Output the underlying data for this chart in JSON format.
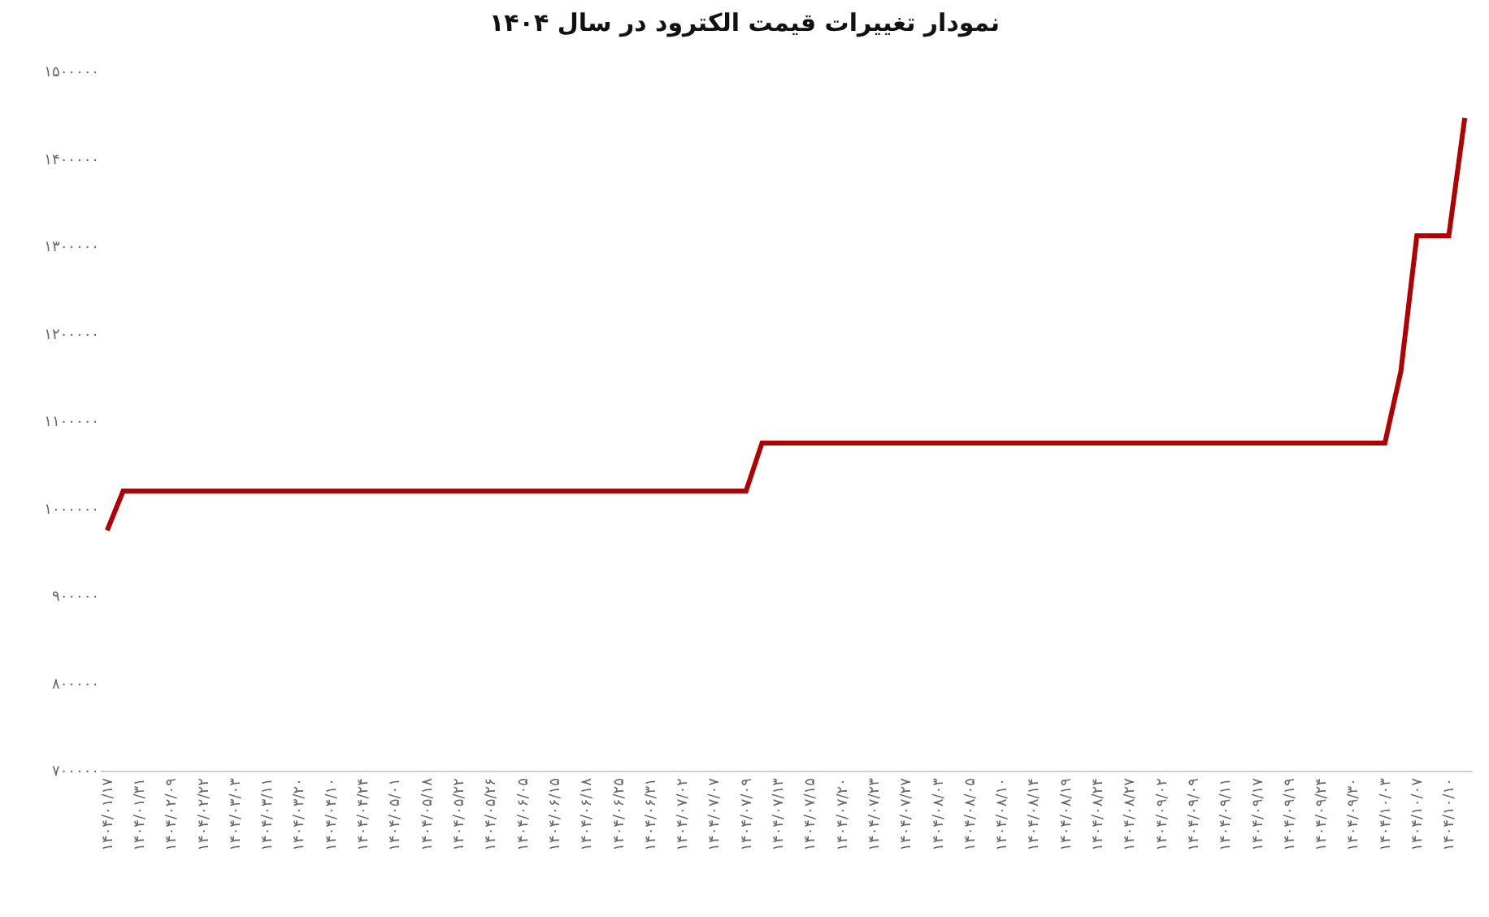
{
  "chart_data": {
    "type": "line",
    "title": "نمودار تغییرات قیمت الکترود در سال ۱۴۰۴",
    "categories": [
      "۱۴۰۴/۰۱/۱۷",
      null,
      "۱۴۰۴/۰۱/۳۱",
      null,
      "۱۴۰۴/۰۲/۰۹",
      null,
      "۱۴۰۴/۰۲/۲۲",
      null,
      "۱۴۰۴/۰۳/۰۳",
      null,
      "۱۴۰۴/۰۳/۱۱",
      null,
      "۱۴۰۴/۰۳/۲۰",
      null,
      "۱۴۰۴/۰۴/۱۰",
      null,
      "۱۴۰۴/۰۴/۲۴",
      null,
      "۱۴۰۴/۰۵/۰۱",
      null,
      "۱۴۰۴/۰۵/۱۸",
      null,
      "۱۴۰۴/۰۵/۲۲",
      null,
      "۱۴۰۴/۰۵/۲۶",
      null,
      "۱۴۰۴/۰۶/۰۵",
      null,
      "۱۴۰۴/۰۶/۱۵",
      null,
      "۱۴۰۴/۰۶/۱۸",
      null,
      "۱۴۰۴/۰۶/۲۵",
      null,
      "۱۴۰۴/۰۶/۳۱",
      null,
      "۱۴۰۴/۰۷/۰۲",
      null,
      "۱۴۰۴/۰۷/۰۷",
      null,
      "۱۴۰۴/۰۷/۰۹",
      null,
      "۱۴۰۴/۰۷/۱۳",
      null,
      "۱۴۰۴/۰۷/۱۵",
      null,
      "۱۴۰۴/۰۷/۲۰",
      null,
      "۱۴۰۴/۰۷/۲۳",
      null,
      "۱۴۰۴/۰۷/۲۷",
      null,
      "۱۴۰۴/۰۸/۰۳",
      null,
      "۱۴۰۴/۰۸/۰۵",
      null,
      "۱۴۰۴/۰۸/۱۰",
      null,
      "۱۴۰۴/۰۸/۱۴",
      null,
      "۱۴۰۴/۰۸/۱۹",
      null,
      "۱۴۰۴/۰۸/۲۴",
      null,
      "۱۴۰۴/۰۸/۲۷",
      null,
      "۱۴۰۴/۰۹/۰۲",
      null,
      "۱۴۰۴/۰۹/۰۹",
      null,
      "۱۴۰۴/۰۹/۱۱",
      null,
      "۱۴۰۴/۰۹/۱۷",
      null,
      "۱۴۰۴/۰۹/۱۹",
      null,
      "۱۴۰۴/۰۹/۲۴",
      null,
      "۱۴۰۴/۰۹/۳۰",
      null,
      "۱۴۰۴/۱۰/۰۳",
      null,
      "۱۴۰۴/۱۰/۰۷",
      null,
      "۱۴۰۴/۱۰/۱۰",
      null
    ],
    "series": [
      {
        "color": "#b00000",
        "values": [
          975000,
          1020000,
          1020000,
          1020000,
          1020000,
          1020000,
          1020000,
          1020000,
          1020000,
          1020000,
          1020000,
          1020000,
          1020000,
          1020000,
          1020000,
          1020000,
          1020000,
          1020000,
          1020000,
          1020000,
          1020000,
          1020000,
          1020000,
          1020000,
          1020000,
          1020000,
          1020000,
          1020000,
          1020000,
          1020000,
          1020000,
          1020000,
          1020000,
          1020000,
          1020000,
          1020000,
          1020000,
          1020000,
          1020000,
          1020000,
          1020000,
          1075000,
          1075000,
          1075000,
          1075000,
          1075000,
          1075000,
          1075000,
          1075000,
          1075000,
          1075000,
          1075000,
          1075000,
          1075000,
          1075000,
          1075000,
          1075000,
          1075000,
          1075000,
          1075000,
          1075000,
          1075000,
          1075000,
          1075000,
          1075000,
          1075000,
          1075000,
          1075000,
          1075000,
          1075000,
          1075000,
          1075000,
          1075000,
          1075000,
          1075000,
          1075000,
          1075000,
          1075000,
          1075000,
          1075000,
          1075000,
          1157000,
          1312000,
          1312000,
          1312000,
          1447000
        ]
      }
    ],
    "ylim": [
      700000,
      1500000
    ],
    "yticks": [
      {
        "value": 700000,
        "label": "۷۰۰۰۰۰"
      },
      {
        "value": 800000,
        "label": "۸۰۰۰۰۰"
      },
      {
        "value": 900000,
        "label": "۹۰۰۰۰۰"
      },
      {
        "value": 1000000,
        "label": "۱۰۰۰۰۰۰"
      },
      {
        "value": 1100000,
        "label": "۱۱۰۰۰۰۰"
      },
      {
        "value": 1200000,
        "label": "۱۲۰۰۰۰۰"
      },
      {
        "value": 1300000,
        "label": "۱۳۰۰۰۰۰"
      },
      {
        "value": 1400000,
        "label": "۱۴۰۰۰۰۰"
      },
      {
        "value": 1500000,
        "label": "۱۵۰۰۰۰۰"
      }
    ],
    "grid": false,
    "marker": "none",
    "line_style": "solid"
  }
}
